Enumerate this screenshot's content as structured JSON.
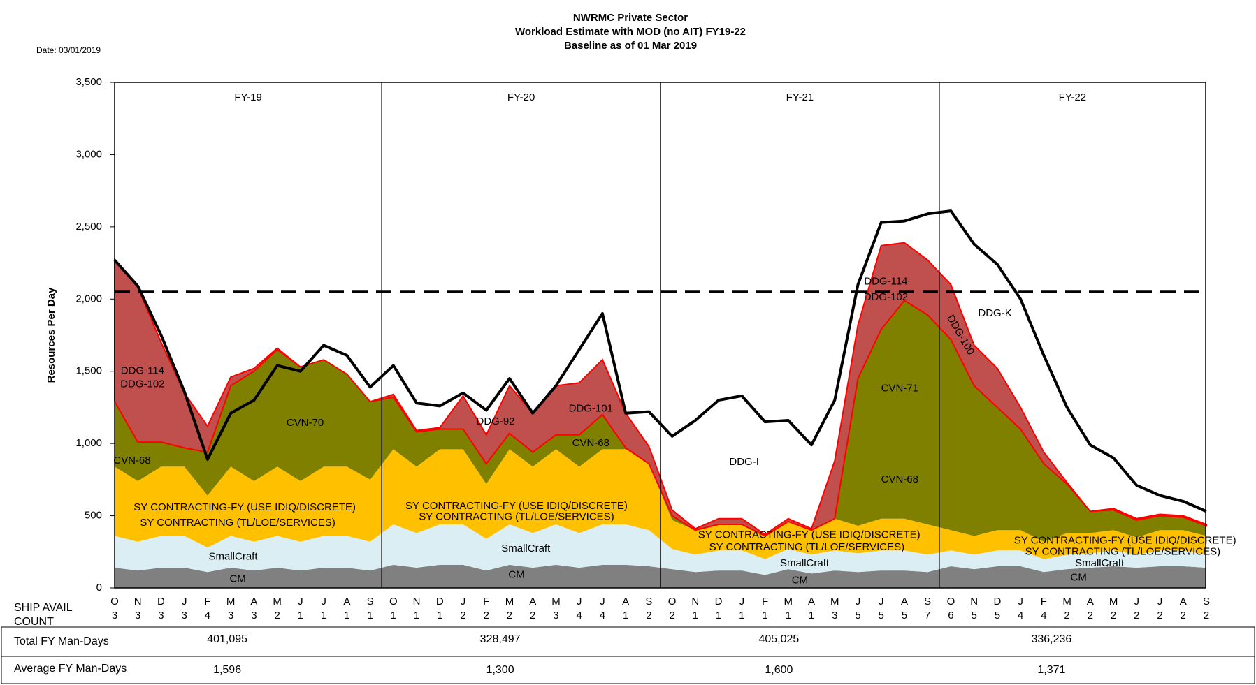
{
  "chart_data": {
    "type": "stacked_area_line",
    "title": [
      "NWRMC Private Sector",
      "Workload Estimate with MOD (no AIT) FY19-22",
      "Baseline as of 01 Mar 2019"
    ],
    "date_label": "Date: 03/01/2019",
    "y_label": "Resources Per Day",
    "categories": [
      "O",
      "N",
      "D",
      "J",
      "F",
      "M",
      "A",
      "M",
      "J",
      "J",
      "A",
      "S",
      "O",
      "N",
      "D",
      "J",
      "F",
      "M",
      "A",
      "M",
      "J",
      "J",
      "A",
      "S",
      "O",
      "N",
      "D",
      "J",
      "F",
      "M",
      "A",
      "M",
      "J",
      "J",
      "A",
      "S",
      "O",
      "N",
      "D",
      "J",
      "F",
      "M",
      "A",
      "M",
      "J",
      "J",
      "A",
      "S"
    ],
    "ship_avail_label": [
      "SHIP AVAIL",
      "COUNT"
    ],
    "ship_avail_count": [
      3,
      3,
      3,
      3,
      4,
      3,
      3,
      2,
      1,
      1,
      1,
      1,
      1,
      1,
      1,
      2,
      2,
      2,
      2,
      3,
      4,
      4,
      1,
      2,
      2,
      1,
      1,
      1,
      1,
      1,
      1,
      3,
      5,
      5,
      5,
      7,
      6,
      5,
      5,
      4,
      4,
      2,
      2,
      2,
      2,
      2,
      2,
      2
    ],
    "ylim": [
      0,
      3500
    ],
    "yticks": [
      0,
      500,
      {
        "value": 1000,
        "label": "1,000"
      },
      {
        "value": 1500,
        "label": "1,500"
      },
      {
        "value": 2000,
        "label": "2,000"
      },
      {
        "value": 2500,
        "label": "2,500"
      },
      {
        "value": 3000,
        "label": "3,000"
      },
      {
        "value": 3500,
        "label": "3,500"
      }
    ],
    "series": [
      {
        "color": "#808080",
        "values": [
          140,
          120,
          140,
          140,
          110,
          140,
          120,
          140,
          120,
          140,
          140,
          120,
          160,
          140,
          160,
          160,
          120,
          160,
          140,
          160,
          140,
          160,
          160,
          150,
          130,
          110,
          120,
          120,
          90,
          130,
          100,
          120,
          110,
          120,
          120,
          110,
          150,
          130,
          150,
          150,
          110,
          130,
          140,
          150,
          140,
          150,
          150,
          140
        ]
      },
      {
        "color": "#daeef3",
        "values": [
          220,
          200,
          220,
          220,
          170,
          220,
          200,
          220,
          200,
          220,
          220,
          200,
          280,
          240,
          280,
          280,
          220,
          280,
          240,
          280,
          240,
          280,
          280,
          250,
          140,
          120,
          140,
          140,
          110,
          140,
          130,
          140,
          130,
          140,
          140,
          120,
          110,
          100,
          110,
          110,
          90,
          100,
          100,
          110,
          90,
          110,
          110,
          90
        ]
      },
      {
        "color": "#ffc000",
        "values": [
          480,
          420,
          480,
          480,
          360,
          480,
          420,
          480,
          420,
          480,
          480,
          430,
          520,
          460,
          520,
          520,
          380,
          520,
          460,
          520,
          460,
          520,
          520,
          460,
          200,
          170,
          180,
          180,
          160,
          190,
          170,
          220,
          190,
          220,
          220,
          210,
          140,
          130,
          140,
          140,
          120,
          150,
          140,
          140,
          120,
          140,
          140,
          130
        ]
      },
      {
        "color": "#7f7f00",
        "values": [
          450,
          270,
          170,
          130,
          300,
          560,
          760,
          810,
          790,
          740,
          640,
          540,
          360,
          240,
          140,
          140,
          140,
          110,
          100,
          100,
          220,
          240,
          10,
          0,
          30,
          0,
          0,
          0,
          0,
          0,
          0,
          0,
          1020,
          1310,
          1510,
          1450,
          1320,
          1040,
          850,
          700,
          540,
          340,
          150,
          140,
          120,
          100,
          90,
          70
        ]
      },
      {
        "color": "#c0504d",
        "values": [
          980,
          1070,
          690,
          380,
          180,
          60,
          20,
          10,
          0,
          0,
          0,
          0,
          20,
          10,
          10,
          230,
          200,
          330,
          270,
          340,
          360,
          380,
          240,
          120,
          40,
          10,
          40,
          40,
          10,
          20,
          10,
          400,
          370,
          580,
          400,
          380,
          380,
          280,
          270,
          150,
          80,
          10,
          0,
          10,
          10,
          10,
          10,
          10
        ]
      }
    ],
    "line": {
      "color": "#000000",
      "values": [
        2270,
        2090,
        1750,
        1360,
        890,
        1210,
        1300,
        1540,
        1500,
        1680,
        1610,
        1390,
        1540,
        1280,
        1260,
        1350,
        1230,
        1450,
        1210,
        1400,
        1650,
        1900,
        1210,
        1220,
        1050,
        1160,
        1300,
        1330,
        1150,
        1160,
        990,
        1300,
        2100,
        2530,
        2540,
        2590,
        2610,
        2380,
        2240,
        2000,
        1610,
        1250,
        990,
        900,
        710,
        640,
        600,
        530
      ]
    },
    "capacity": 2050,
    "fiscal_years": [
      {
        "label": "FY-19",
        "total": "401,095",
        "average": "1,596"
      },
      {
        "label": "FY-20",
        "total": "328,497",
        "average": "1,300"
      },
      {
        "label": "FY-21",
        "total": "405,025",
        "average": "1,600"
      },
      {
        "label": "FY-22",
        "total": "336,236",
        "average": "1,371"
      }
    ],
    "row_labels": {
      "total": "Total FY Man-Days",
      "average": "Average  FY Man-Days"
    },
    "annotations": [
      {
        "text": "DDG-114",
        "x": 1.2,
        "y": 1500
      },
      {
        "text": "DDG-102",
        "x": 1.2,
        "y": 1410
      },
      {
        "text": "CVN-68",
        "x": 0.75,
        "y": 880
      },
      {
        "text": "CVN-70",
        "x": 8.2,
        "y": 1140
      },
      {
        "text": "SY CONTRACTING-FY (USE IDIQ/DISCRETE)",
        "x": 5.6,
        "y": 555
      },
      {
        "text": "SY CONTRACTING (TL/LOE/SERVICES)",
        "x": 5.3,
        "y": 450
      },
      {
        "text": "SmallCraft",
        "x": 5.1,
        "y": 215
      },
      {
        "text": "CM",
        "x": 5.3,
        "y": 60
      },
      {
        "text": "DDG-92",
        "x": 16.4,
        "y": 1150
      },
      {
        "text": "DDG-101",
        "x": 20.5,
        "y": 1240
      },
      {
        "text": "CVN-68",
        "x": 20.5,
        "y": 1000
      },
      {
        "text": "SY CONTRACTING-FY (USE IDIQ/DISCRETE)",
        "x": 17.3,
        "y": 565
      },
      {
        "text": "SY CONTRACTING (TL/LOE/SERVICES)",
        "x": 17.3,
        "y": 490
      },
      {
        "text": "SmallCraft",
        "x": 17.7,
        "y": 270
      },
      {
        "text": "CM",
        "x": 17.3,
        "y": 90
      },
      {
        "text": "DDG-I",
        "x": 27.1,
        "y": 870
      },
      {
        "text": "SY CONTRACTING-FY (USE IDIQ/DISCRETE)",
        "x": 29.9,
        "y": 365
      },
      {
        "text": "SY CONTRACTING (TL/LOE/SERVICES)",
        "x": 29.8,
        "y": 280
      },
      {
        "text": "SmallCraft",
        "x": 29.7,
        "y": 170
      },
      {
        "text": "CM",
        "x": 29.5,
        "y": 50
      },
      {
        "text": "DDG-114",
        "x": 33.2,
        "y": 2120
      },
      {
        "text": "DDG-102",
        "x": 33.2,
        "y": 2010
      },
      {
        "text": "CVN-71",
        "x": 33.8,
        "y": 1380
      },
      {
        "text": "CVN-68",
        "x": 33.8,
        "y": 750
      },
      {
        "text": "DDG-100",
        "x": 36.4,
        "y": 1750,
        "rotation": 60
      },
      {
        "text": "DDG-K",
        "x": 37.9,
        "y": 1900
      },
      {
        "text": "SY CONTRACTING-FY (USE IDIQ/DISCRETE)",
        "x": 43.5,
        "y": 325
      },
      {
        "text": "SY CONTRACTING (TL/LOE/SERVICES)",
        "x": 43.4,
        "y": 250
      },
      {
        "text": "SmallCraft",
        "x": 42.4,
        "y": 170
      },
      {
        "text": "CM",
        "x": 41.5,
        "y": 70
      }
    ]
  }
}
